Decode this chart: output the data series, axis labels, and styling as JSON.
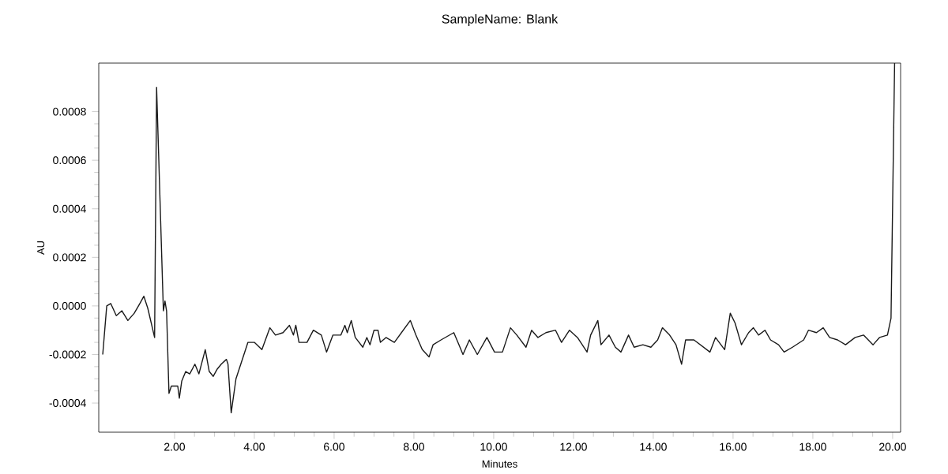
{
  "chart_data": {
    "type": "line",
    "title": "SampleName: Blank",
    "xlabel": "Minutes",
    "ylabel": "AU",
    "color": "#1a1a1a",
    "grid": false,
    "xlim": [
      0.1,
      20.2
    ],
    "ylim": [
      -0.00052,
      0.001
    ],
    "xticks": [
      {
        "value": 2,
        "label": "2.00"
      },
      {
        "value": 4,
        "label": "4.00"
      },
      {
        "value": 6,
        "label": "6.00"
      },
      {
        "value": 8,
        "label": "8.00"
      },
      {
        "value": 10,
        "label": "10.00"
      },
      {
        "value": 12,
        "label": "12.00"
      },
      {
        "value": 14,
        "label": "14.00"
      },
      {
        "value": 16,
        "label": "16.00"
      },
      {
        "value": 18,
        "label": "18.00"
      },
      {
        "value": 20,
        "label": "20.00"
      }
    ],
    "yticks": [
      {
        "value": -0.0004,
        "label": "-0.0004"
      },
      {
        "value": -0.0002,
        "label": "-0.0002"
      },
      {
        "value": 0,
        "label": "0.0000"
      },
      {
        "value": 0.0002,
        "label": "0.0002"
      },
      {
        "value": 0.0004,
        "label": "0.0004"
      },
      {
        "value": 0.0006,
        "label": "0.0006"
      },
      {
        "value": 0.0008,
        "label": "0.0008"
      }
    ],
    "x": [
      0.2,
      0.3,
      0.4,
      0.54,
      0.68,
      0.83,
      0.99,
      1.13,
      1.23,
      1.33,
      1.5,
      1.55,
      1.72,
      1.76,
      1.8,
      1.86,
      1.92,
      2.08,
      2.12,
      2.18,
      2.28,
      2.38,
      2.51,
      2.61,
      2.77,
      2.87,
      2.97,
      3.07,
      3.17,
      3.3,
      3.34,
      3.42,
      3.54,
      3.66,
      3.84,
      4.0,
      4.19,
      4.39,
      4.53,
      4.72,
      4.88,
      4.98,
      5.04,
      5.12,
      5.32,
      5.48,
      5.68,
      5.81,
      5.97,
      6.17,
      6.27,
      6.33,
      6.43,
      6.53,
      6.72,
      6.82,
      6.9,
      7.0,
      7.1,
      7.16,
      7.3,
      7.51,
      7.91,
      8.05,
      8.21,
      8.38,
      8.48,
      8.68,
      9.0,
      9.13,
      9.23,
      9.39,
      9.59,
      9.83,
      10.02,
      10.22,
      10.42,
      10.58,
      10.81,
      10.95,
      11.11,
      11.31,
      11.55,
      11.7,
      11.9,
      12.1,
      12.34,
      12.43,
      12.61,
      12.69,
      12.89,
      13.05,
      13.19,
      13.38,
      13.52,
      13.74,
      13.94,
      14.11,
      14.23,
      14.41,
      14.57,
      14.71,
      14.81,
      15.02,
      15.42,
      15.56,
      15.79,
      15.93,
      16.05,
      16.21,
      16.39,
      16.51,
      16.64,
      16.8,
      16.94,
      17.14,
      17.28,
      17.49,
      17.77,
      17.89,
      18.09,
      18.26,
      18.42,
      18.62,
      18.82,
      19.06,
      19.27,
      19.51,
      19.67,
      19.87,
      19.96,
      20.05
    ],
    "values": [
      -0.0002,
      0.0,
      1e-05,
      -4e-05,
      -2e-05,
      -6e-05,
      -3e-05,
      1e-05,
      4e-05,
      -1e-05,
      -0.00013,
      0.0009,
      -2e-05,
      2e-05,
      -2e-05,
      -0.00036,
      -0.00033,
      -0.00033,
      -0.00038,
      -0.00031,
      -0.00027,
      -0.00028,
      -0.00024,
      -0.00028,
      -0.00018,
      -0.00027,
      -0.00029,
      -0.00026,
      -0.00024,
      -0.00022,
      -0.00024,
      -0.00044,
      -0.0003,
      -0.00024,
      -0.00015,
      -0.00015,
      -0.00018,
      -9e-05,
      -0.00012,
      -0.00011,
      -8e-05,
      -0.00012,
      -8e-05,
      -0.00015,
      -0.00015,
      -0.0001,
      -0.00012,
      -0.00019,
      -0.00012,
      -0.00012,
      -8e-05,
      -0.00011,
      -6e-05,
      -0.00013,
      -0.00017,
      -0.00013,
      -0.00016,
      -0.0001,
      -0.0001,
      -0.00015,
      -0.00013,
      -0.00015,
      -6e-05,
      -0.00012,
      -0.00018,
      -0.00021,
      -0.00016,
      -0.00014,
      -0.00011,
      -0.00016,
      -0.0002,
      -0.00014,
      -0.0002,
      -0.00013,
      -0.00019,
      -0.00019,
      -9e-05,
      -0.00012,
      -0.00017,
      -0.0001,
      -0.00013,
      -0.00011,
      -0.0001,
      -0.00015,
      -0.0001,
      -0.00013,
      -0.00019,
      -0.00012,
      -6e-05,
      -0.00016,
      -0.00012,
      -0.00017,
      -0.00019,
      -0.00012,
      -0.00017,
      -0.00016,
      -0.00017,
      -0.00014,
      -9e-05,
      -0.00012,
      -0.00016,
      -0.00024,
      -0.00014,
      -0.00014,
      -0.00019,
      -0.00013,
      -0.00018,
      -3e-05,
      -7e-05,
      -0.00016,
      -0.00011,
      -9e-05,
      -0.00012,
      -0.0001,
      -0.00014,
      -0.00016,
      -0.00019,
      -0.00017,
      -0.00014,
      -0.0001,
      -0.00011,
      -9e-05,
      -0.00013,
      -0.00014,
      -0.00016,
      -0.00013,
      -0.00012,
      -0.00016,
      -0.00013,
      -0.00012,
      -5e-05,
      0.001
    ]
  }
}
